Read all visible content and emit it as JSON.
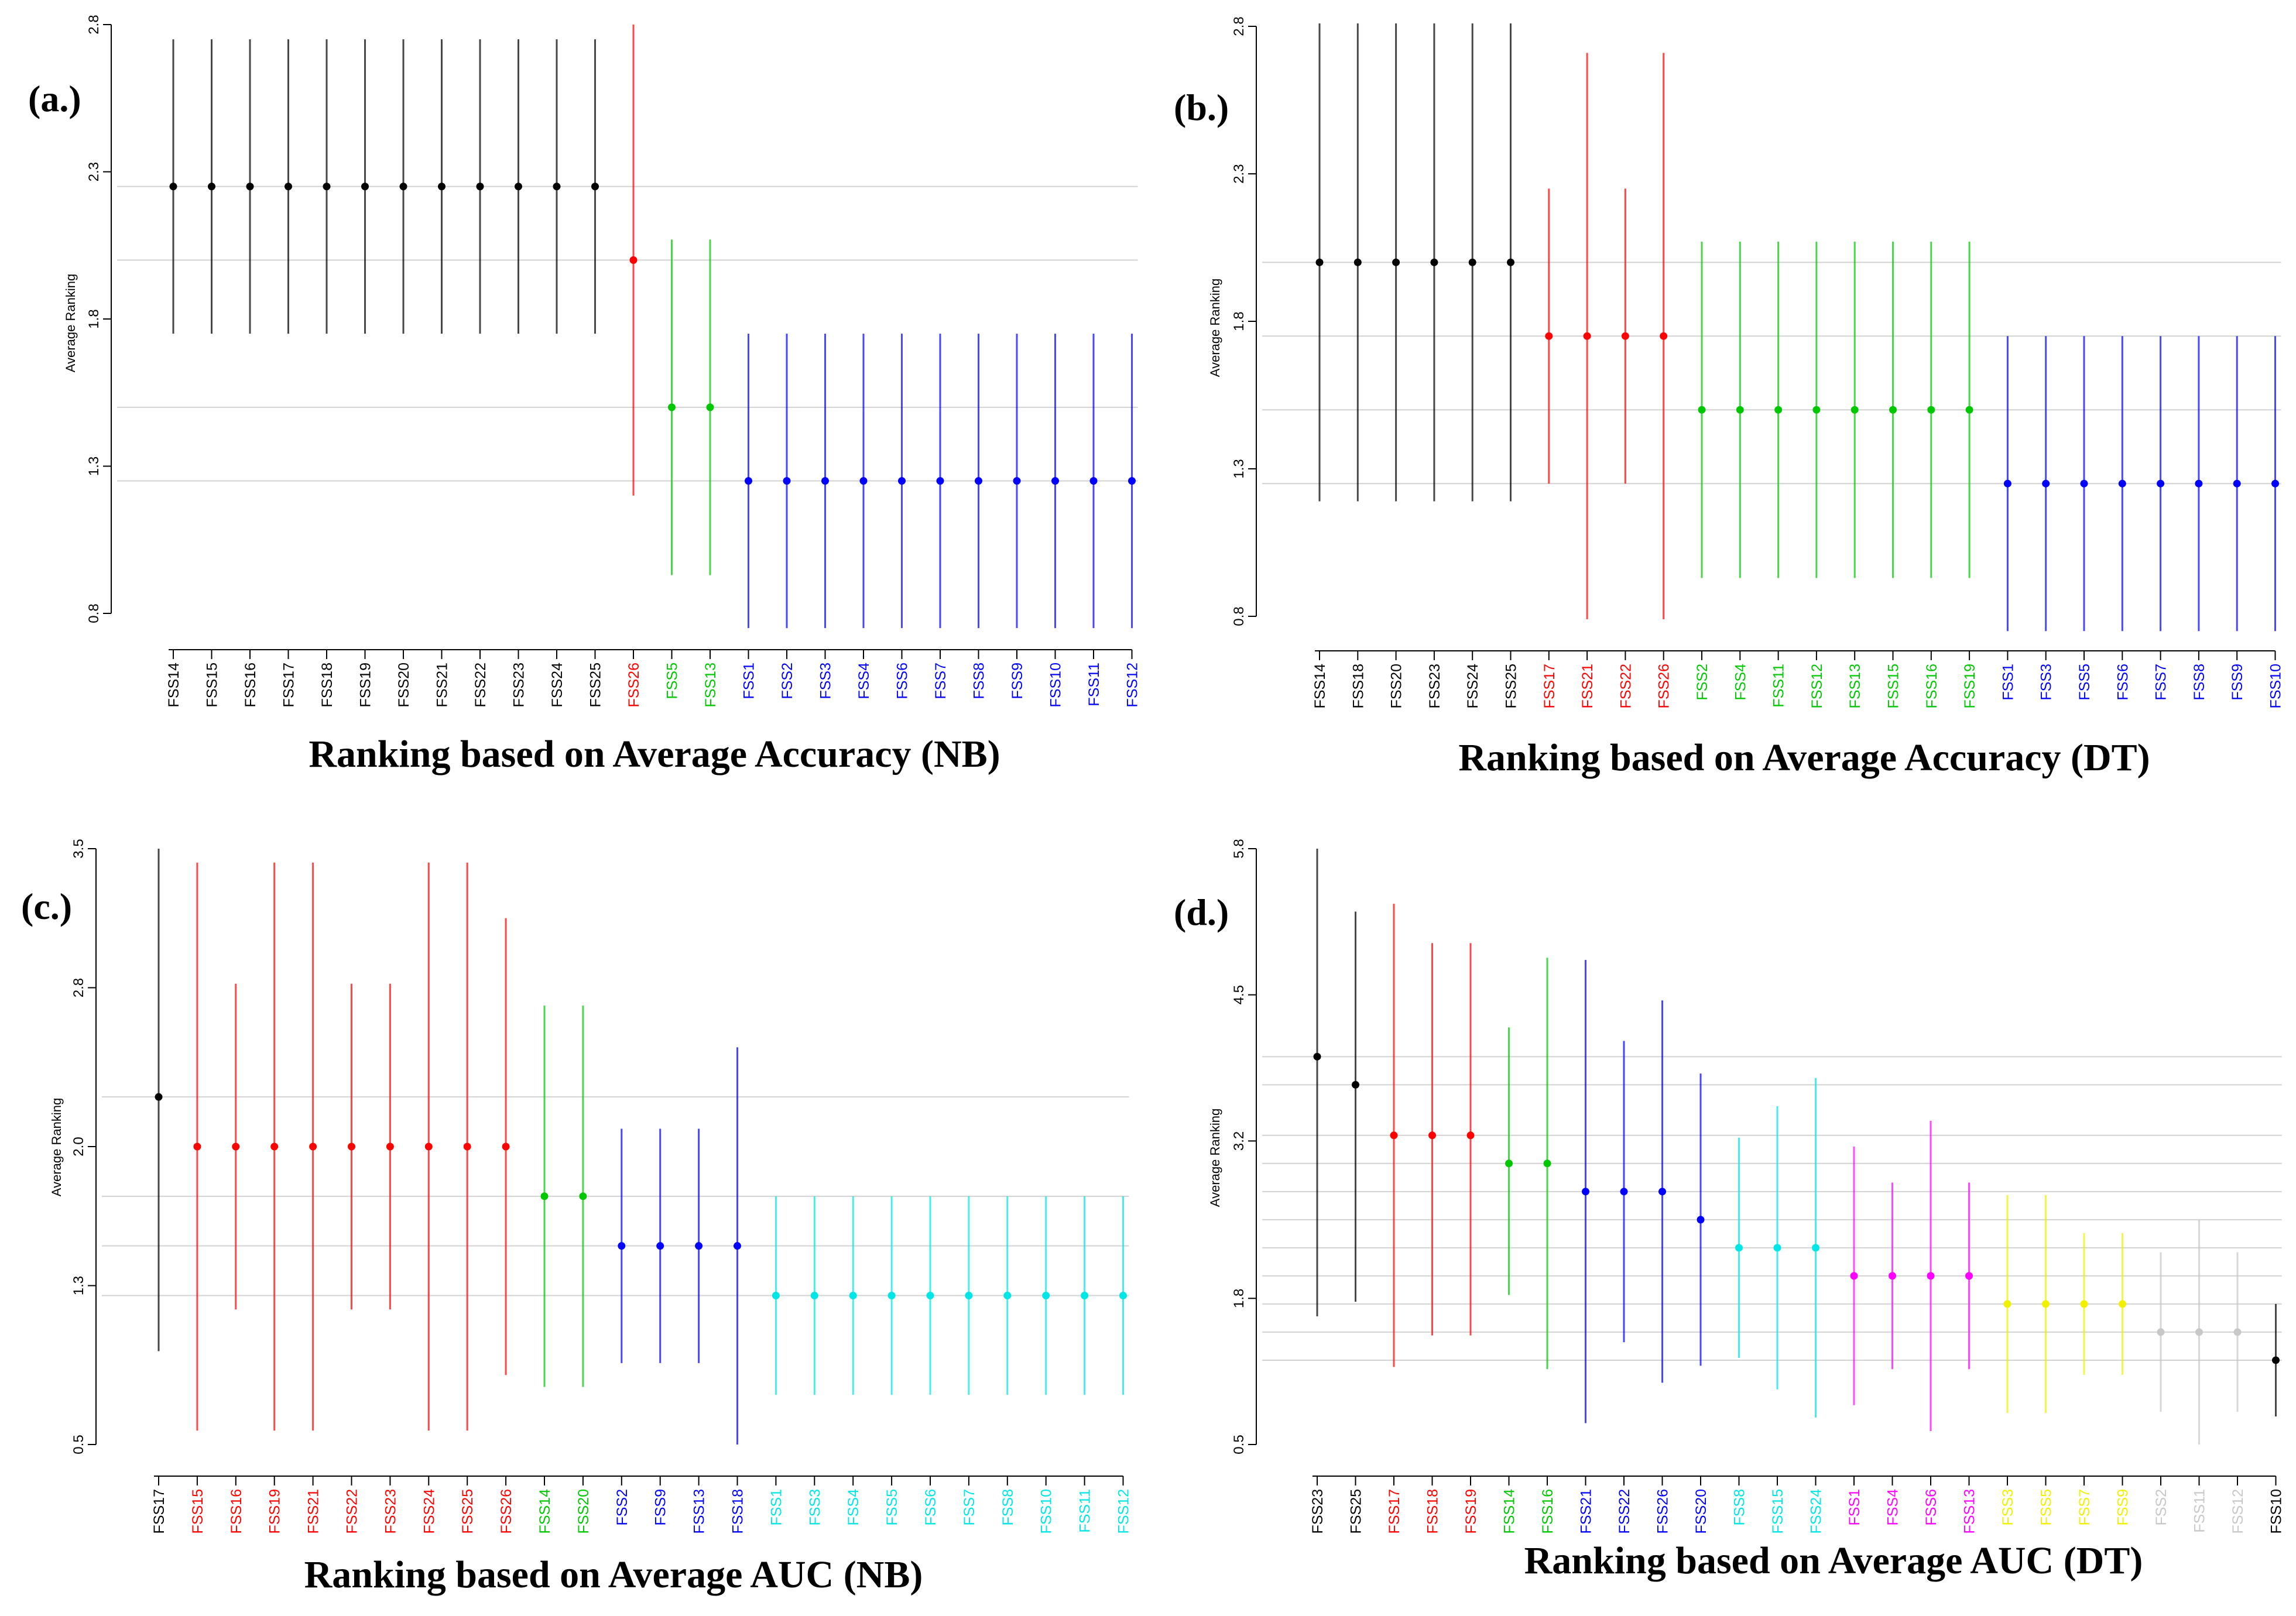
{
  "chart_data": [
    {
      "type": "scatter",
      "panel_label": "(a.)",
      "title": "Ranking based on Average Accuracy (NB)",
      "xlabel": "",
      "ylabel": "Average Ranking",
      "ylim": [
        0.8,
        2.8
      ],
      "yticks": [
        "0.8",
        "1.3",
        "1.8",
        "2.3",
        "2.8"
      ],
      "grid_lines": [
        2.25,
        2.0,
        1.5,
        1.25
      ],
      "groups": [
        {
          "color": "#000000",
          "center": 2.25,
          "low": 1.75,
          "high": 2.75,
          "categories": [
            "FSS14",
            "FSS15",
            "FSS16",
            "FSS17",
            "FSS18",
            "FSS19",
            "FSS20",
            "FSS21",
            "FSS22",
            "FSS23",
            "FSS24",
            "FSS25"
          ]
        },
        {
          "color": "#ff0000",
          "center": 2.0,
          "low": 1.2,
          "high": 2.8,
          "categories": [
            "FSS26"
          ]
        },
        {
          "color": "#00c800",
          "center": 1.5,
          "low": 0.93,
          "high": 2.07,
          "categories": [
            "FSS5",
            "FSS13"
          ]
        },
        {
          "color": "#0000ff",
          "center": 1.25,
          "low": 0.75,
          "high": 1.75,
          "categories": [
            "FSS1",
            "FSS2",
            "FSS3",
            "FSS4",
            "FSS6",
            "FSS7",
            "FSS8",
            "FSS9",
            "FSS10",
            "FSS11",
            "FSS12"
          ]
        }
      ]
    },
    {
      "type": "scatter",
      "panel_label": "(b.)",
      "title": "Ranking based on Average Accuracy (DT)",
      "xlabel": "",
      "ylabel": "Average Ranking",
      "ylim": [
        0.8,
        2.8
      ],
      "yticks": [
        "0.8",
        "1.3",
        "1.8",
        "2.3",
        "2.8"
      ],
      "grid_lines": [
        2.0,
        1.75,
        1.5,
        1.25
      ],
      "groups": [
        {
          "color": "#000000",
          "center": 2.0,
          "low": 1.19,
          "high": 2.81,
          "categories": [
            "FSS14",
            "FSS18",
            "FSS20",
            "FSS23",
            "FSS24",
            "FSS25"
          ]
        },
        {
          "color": "#ff0000",
          "center": 1.75,
          "low": 1.25,
          "high": 2.25,
          "categories": [
            "FSS17"
          ]
        },
        {
          "color": "#ff0000",
          "center": 1.75,
          "low": 0.79,
          "high": 2.71,
          "categories": [
            "FSS21"
          ]
        },
        {
          "color": "#ff0000",
          "center": 1.75,
          "low": 1.25,
          "high": 2.25,
          "categories": [
            "FSS22"
          ]
        },
        {
          "color": "#ff0000",
          "center": 1.75,
          "low": 0.79,
          "high": 2.71,
          "categories": [
            "FSS26"
          ]
        },
        {
          "color": "#00c800",
          "center": 1.5,
          "low": 0.93,
          "high": 2.07,
          "categories": [
            "FSS2",
            "FSS4",
            "FSS11",
            "FSS12",
            "FSS13",
            "FSS15",
            "FSS16",
            "FSS19"
          ]
        },
        {
          "color": "#0000ff",
          "center": 1.25,
          "low": 0.75,
          "high": 1.75,
          "categories": [
            "FSS1",
            "FSS3",
            "FSS5",
            "FSS6",
            "FSS7",
            "FSS8",
            "FSS9",
            "FSS10"
          ]
        }
      ]
    },
    {
      "type": "scatter",
      "panel_label": "(c.)",
      "title": "Ranking based on Average AUC (NB)",
      "xlabel": "",
      "ylabel": "Average Ranking",
      "ylim": [
        0.5,
        3.5
      ],
      "yticks": [
        "0.5",
        "1.3",
        "2.0",
        "2.8",
        "3.5"
      ],
      "grid_lines": [
        2.25,
        1.75,
        1.5,
        1.25
      ],
      "groups": [
        {
          "color": "#000000",
          "center": 2.25,
          "low": 0.97,
          "high": 3.5,
          "categories": [
            "FSS17"
          ]
        },
        {
          "color": "#ff0000",
          "center": 2.0,
          "low": 0.57,
          "high": 3.43,
          "categories": [
            "FSS15"
          ]
        },
        {
          "color": "#ff0000",
          "center": 2.0,
          "low": 1.18,
          "high": 2.82,
          "categories": [
            "FSS16"
          ]
        },
        {
          "color": "#ff0000",
          "center": 2.0,
          "low": 0.57,
          "high": 3.43,
          "categories": [
            "FSS19",
            "FSS21"
          ]
        },
        {
          "color": "#ff0000",
          "center": 2.0,
          "low": 1.18,
          "high": 2.82,
          "categories": [
            "FSS22",
            "FSS23"
          ]
        },
        {
          "color": "#ff0000",
          "center": 2.0,
          "low": 0.57,
          "high": 3.43,
          "categories": [
            "FSS24",
            "FSS25"
          ]
        },
        {
          "color": "#ff0000",
          "center": 2.0,
          "low": 0.85,
          "high": 3.15,
          "categories": [
            "FSS26"
          ]
        },
        {
          "color": "#00c800",
          "center": 1.75,
          "low": 0.79,
          "high": 2.71,
          "categories": [
            "FSS14",
            "FSS20"
          ]
        },
        {
          "color": "#0000ff",
          "center": 1.5,
          "low": 0.91,
          "high": 2.09,
          "categories": [
            "FSS2",
            "FSS9",
            "FSS13"
          ]
        },
        {
          "color": "#0000ff",
          "center": 1.5,
          "low": 0.5,
          "high": 2.5,
          "categories": [
            "FSS18"
          ]
        },
        {
          "color": "#00e6e6",
          "center": 1.25,
          "low": 0.75,
          "high": 1.75,
          "categories": [
            "FSS1",
            "FSS3",
            "FSS4",
            "FSS5",
            "FSS6",
            "FSS7",
            "FSS8",
            "FSS10",
            "FSS11",
            "FSS12"
          ]
        }
      ]
    },
    {
      "type": "scatter",
      "panel_label": "(d.)",
      "title": "Ranking based on Average AUC (DT)",
      "xlabel": "",
      "ylabel": "Average Ranking",
      "ylim": [
        0.5,
        5.8
      ],
      "yticks": [
        "0.5",
        "1.8",
        "3.2",
        "4.5",
        "5.8"
      ],
      "grid_lines": [
        3.95,
        3.7,
        3.25,
        3.0,
        2.75,
        2.5,
        2.25,
        2.0,
        1.75,
        1.5,
        1.25
      ],
      "groups": [
        {
          "color": "#000000",
          "center": 3.95,
          "low": 1.64,
          "high": 5.8,
          "categories": [
            "FSS23"
          ]
        },
        {
          "color": "#000000",
          "center": 3.7,
          "low": 1.77,
          "high": 5.24,
          "categories": [
            "FSS25"
          ]
        },
        {
          "color": "#ff0000",
          "center": 3.25,
          "low": 1.19,
          "high": 5.31,
          "categories": [
            "FSS17"
          ]
        },
        {
          "color": "#ff0000",
          "center": 3.25,
          "low": 1.47,
          "high": 4.96,
          "categories": [
            "FSS18",
            "FSS19"
          ]
        },
        {
          "color": "#00c800",
          "center": 3.0,
          "low": 1.83,
          "high": 4.21,
          "categories": [
            "FSS14"
          ]
        },
        {
          "color": "#00c800",
          "center": 3.0,
          "low": 1.17,
          "high": 4.83,
          "categories": [
            "FSS16"
          ]
        },
        {
          "color": "#0000ff",
          "center": 2.75,
          "low": 0.69,
          "high": 4.81,
          "categories": [
            "FSS21"
          ]
        },
        {
          "color": "#0000ff",
          "center": 2.75,
          "low": 1.41,
          "high": 4.09,
          "categories": [
            "FSS22"
          ]
        },
        {
          "color": "#0000ff",
          "center": 2.75,
          "low": 1.05,
          "high": 4.45,
          "categories": [
            "FSS26"
          ]
        },
        {
          "color": "#0000ff",
          "center": 2.5,
          "low": 1.2,
          "high": 3.8,
          "categories": [
            "FSS20"
          ]
        },
        {
          "color": "#00e6e6",
          "center": 2.25,
          "low": 1.27,
          "high": 3.23,
          "categories": [
            "FSS8"
          ]
        },
        {
          "color": "#00e6e6",
          "center": 2.25,
          "low": 0.99,
          "high": 3.51,
          "categories": [
            "FSS15"
          ]
        },
        {
          "color": "#00e6e6",
          "center": 2.25,
          "low": 0.74,
          "high": 3.76,
          "categories": [
            "FSS24"
          ]
        },
        {
          "color": "#ff00ff",
          "center": 2.0,
          "low": 0.85,
          "high": 3.15,
          "categories": [
            "FSS1"
          ]
        },
        {
          "color": "#ff00ff",
          "center": 2.0,
          "low": 1.17,
          "high": 2.83,
          "categories": [
            "FSS4"
          ]
        },
        {
          "color": "#ff00ff",
          "center": 2.0,
          "low": 0.62,
          "high": 3.38,
          "categories": [
            "FSS6"
          ]
        },
        {
          "color": "#ff00ff",
          "center": 2.0,
          "low": 1.17,
          "high": 2.83,
          "categories": [
            "FSS13"
          ]
        },
        {
          "color": "#f0f000",
          "center": 1.75,
          "low": 0.78,
          "high": 2.72,
          "categories": [
            "FSS3",
            "FSS5"
          ]
        },
        {
          "color": "#f0f000",
          "center": 1.75,
          "low": 1.12,
          "high": 2.38,
          "categories": [
            "FSS7",
            "FSS9"
          ]
        },
        {
          "color": "#c8c8c8",
          "center": 1.5,
          "low": 0.79,
          "high": 2.21,
          "categories": [
            "FSS2"
          ]
        },
        {
          "color": "#c8c8c8",
          "center": 1.5,
          "low": 0.5,
          "high": 2.5,
          "categories": [
            "FSS11"
          ]
        },
        {
          "color": "#c8c8c8",
          "center": 1.5,
          "low": 0.79,
          "high": 2.21,
          "categories": [
            "FSS12"
          ]
        },
        {
          "color": "#000000",
          "center": 1.25,
          "low": 0.75,
          "high": 1.75,
          "categories": [
            "FSS10"
          ]
        }
      ]
    }
  ]
}
